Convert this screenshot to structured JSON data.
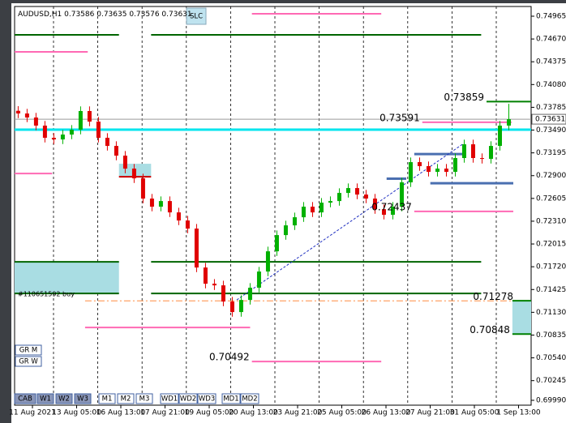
{
  "chart_data": {
    "type": "candlestick",
    "title": "AUDUSD,H1",
    "quote": [
      0.73586,
      0.73635,
      0.73576,
      0.73631
    ],
    "bid": 0.73631,
    "up_color": "#00b000",
    "down_color": "#e00000",
    "xlim": [
      -0.4,
      57.5
    ],
    "ylim": [
      0.69927,
      0.75091
    ],
    "yticks": [
      0.74965,
      {
        "value": 0.7467,
        "label": "0.74670"
      },
      0.74375,
      {
        "value": 0.7408,
        "label": "0.74080"
      },
      0.73785,
      {
        "value": 0.7349,
        "label": "0.73490"
      },
      0.73195,
      {
        "value": 0.729,
        "label": "0.72900"
      },
      0.72605,
      {
        "value": 0.7231,
        "label": "0.72310"
      },
      0.72015,
      {
        "value": 0.7172,
        "label": "0.71720"
      },
      0.71425,
      {
        "value": 0.7113,
        "label": "0.71130"
      },
      0.70835,
      {
        "value": 0.7054,
        "label": "0.70540"
      },
      0.70245,
      {
        "value": 0.6999,
        "label": "0.69990"
      }
    ],
    "x_labels": [
      "11 Aug 2021",
      "13 Aug 05:00",
      "16 Aug 13:00",
      "17 Aug 21:00",
      "19 Aug 05:00",
      "20 Aug 13:00",
      "23 Aug 21:00",
      "25 Aug 05:00",
      "26 Aug 13:00",
      "27 Aug 21:00",
      "31 Aug 05:00",
      "1 Sep 13:00"
    ],
    "open": [
      0.7374,
      0.73705,
      0.73653,
      0.73548,
      0.7339,
      0.73369,
      0.73432,
      0.73495,
      0.73737,
      0.736,
      0.7339,
      0.73285,
      0.73159,
      0.72991,
      0.72865,
      0.72603,
      0.72498,
      0.72571,
      0.72424,
      0.72319,
      0.72214,
      0.7171,
      0.715,
      0.71479,
      0.71269,
      0.71133,
      0.7129,
      0.71448,
      0.71658,
      0.7192,
      0.7213,
      0.72256,
      0.72361,
      0.72498,
      0.72424,
      0.7255,
      0.72571,
      0.72676,
      0.72739,
      0.72655,
      0.72603,
      0.72466,
      0.72393,
      0.72498,
      0.72813,
      0.73075,
      0.73023,
      0.72949,
      0.72991,
      0.72949,
      0.73128,
      0.73306,
      0.73128,
      0.73117,
      0.73285,
      0.73548
    ],
    "high": [
      0.738,
      0.73765,
      0.73713,
      0.73608,
      0.7345,
      0.73492,
      0.73555,
      0.73797,
      0.73797,
      0.7366,
      0.7345,
      0.73345,
      0.73219,
      0.73051,
      0.72925,
      0.72663,
      0.72631,
      0.72631,
      0.72484,
      0.72379,
      0.72274,
      0.7177,
      0.7156,
      0.71539,
      0.71329,
      0.7135,
      0.71508,
      0.71718,
      0.7198,
      0.7219,
      0.72316,
      0.72421,
      0.72558,
      0.72558,
      0.7261,
      0.72631,
      0.72736,
      0.72799,
      0.72799,
      0.72715,
      0.72663,
      0.72526,
      0.72558,
      0.72873,
      0.73135,
      0.73135,
      0.73083,
      0.73051,
      0.73051,
      0.73188,
      0.73366,
      0.73366,
      0.73188,
      0.73345,
      0.73608,
      0.7383
    ],
    "low": [
      0.73645,
      0.73593,
      0.73488,
      0.7333,
      0.73309,
      0.73309,
      0.73372,
      0.73435,
      0.7354,
      0.7333,
      0.73225,
      0.73099,
      0.72931,
      0.72805,
      0.72543,
      0.72438,
      0.72438,
      0.72364,
      0.72259,
      0.72154,
      0.7165,
      0.7144,
      0.71419,
      0.71209,
      0.71073,
      0.71073,
      0.7123,
      0.71388,
      0.71598,
      0.7186,
      0.7207,
      0.72196,
      0.72301,
      0.72364,
      0.72364,
      0.7249,
      0.72511,
      0.72616,
      0.72595,
      0.72543,
      0.72406,
      0.72333,
      0.72333,
      0.72438,
      0.72753,
      0.72963,
      0.72889,
      0.72889,
      0.72889,
      0.72889,
      0.73068,
      0.73068,
      0.73057,
      0.73057,
      0.73225,
      0.73488
    ],
    "close": [
      0.73705,
      0.73653,
      0.73548,
      0.7339,
      0.73369,
      0.73432,
      0.73495,
      0.73737,
      0.736,
      0.7339,
      0.73285,
      0.73159,
      0.72991,
      0.72865,
      0.72603,
      0.72498,
      0.72571,
      0.72424,
      0.72319,
      0.72214,
      0.7171,
      0.715,
      0.71479,
      0.71269,
      0.71133,
      0.7129,
      0.71448,
      0.71658,
      0.7192,
      0.7213,
      0.72256,
      0.72361,
      0.72498,
      0.72424,
      0.7255,
      0.72571,
      0.72676,
      0.72739,
      0.72655,
      0.72603,
      0.72466,
      0.72393,
      0.72498,
      0.72813,
      0.73075,
      0.73023,
      0.72949,
      0.72991,
      0.72949,
      0.73128,
      0.73306,
      0.73128,
      0.73117,
      0.73285,
      0.73548,
      0.73631
    ],
    "zones": [
      {
        "top": 0.71783,
        "bottom": 0.71374,
        "from": -0.4,
        "to": 11.3,
        "color": "#a9dde3"
      },
      {
        "top": 0.73054,
        "bottom": 0.72886,
        "from": 11.3,
        "to": 14.9,
        "color": "#a9dde3"
      },
      {
        "top": 0.7128,
        "bottom": 0.70848,
        "from": 55.4,
        "to": 57.5,
        "color": "#a9dde3"
      }
    ],
    "levels": [
      {
        "value": 0.74723,
        "color": "#006400",
        "from": -0.4,
        "to": 11.3
      },
      {
        "value": 0.74723,
        "color": "#006400",
        "from": 14.9,
        "to": 51.9
      },
      {
        "value": 0.74996,
        "color": "#ff69b4",
        "from": 26.2,
        "to": 40.7
      },
      {
        "value": 0.74503,
        "color": "#ff69b4",
        "from": -0.4,
        "to": 7.8
      },
      {
        "value": 0.73495,
        "color": "#00e5ee",
        "from": -0.4,
        "to": 57.5,
        "width": 3
      },
      {
        "value": 0.73591,
        "color": "#ff69b4",
        "from": 45.3,
        "to": 55.3,
        "labeled": true,
        "label_color": "#f2a6c8"
      },
      {
        "value": 0.73859,
        "color": "#008000",
        "from": 52.5,
        "to": 57.5,
        "labeled": true
      },
      {
        "value": 0.72928,
        "color": "#ff69b4",
        "from": -0.4,
        "to": 3.8
      },
      {
        "value": 0.72886,
        "color": "#cc0000",
        "from": 11.3,
        "to": 14.9
      },
      {
        "value": 0.71783,
        "color": "#006400",
        "from": -0.4,
        "to": 11.3
      },
      {
        "value": 0.71783,
        "color": "#006400",
        "from": 14.9,
        "to": 51.9
      },
      {
        "value": 0.71374,
        "color": "#006400",
        "from": -0.4,
        "to": 11.3
      },
      {
        "value": 0.71374,
        "color": "#006400",
        "from": 14.9,
        "to": 51.9
      },
      {
        "value": 0.71278,
        "color": "#ff8c40",
        "from": 7.5,
        "to": 57.5,
        "width": 1,
        "dash": true,
        "labeled": true,
        "label_color": "#008000"
      },
      {
        "value": 0.70933,
        "color": "#ff69b4",
        "from": 7.5,
        "to": 26
      },
      {
        "value": 0.72437,
        "color": "#ff69b4",
        "from": 44.4,
        "to": 55.5,
        "labeled": true
      },
      {
        "value": 0.70492,
        "color": "#ff69b4",
        "from": 26.2,
        "to": 40.7,
        "labeled": true
      },
      {
        "value": 0.70848,
        "color": "#008000",
        "from": 55.4,
        "to": 57.5,
        "labeled": true
      },
      {
        "value": 0.7128,
        "color": "#008000",
        "from": 55.4,
        "to": 57.5
      },
      {
        "value": 0.7286,
        "color": "#4a6fb0",
        "from": 41.3,
        "to": 43.5,
        "width": 3
      },
      {
        "value": 0.7318,
        "color": "#4a6fb0",
        "from": 44.4,
        "to": 49.8,
        "width": 3
      },
      {
        "value": 0.72802,
        "color": "#4a6fb0",
        "from": 46.2,
        "to": 55.5,
        "width": 3
      }
    ],
    "trend_line": {
      "from": 24.5,
      "to": 49.8,
      "start": 0.7129,
      "end": 0.73306,
      "color": "#2030c0"
    },
    "order_label": "#110651592 buy",
    "slc_button": "SLC",
    "side_buttons": [
      "GR M",
      "GR W"
    ],
    "buttons": [
      "CAB",
      "W1",
      "W2",
      "W3",
      "M1",
      "M2",
      "M3",
      "WD1",
      "WD2",
      "WD3",
      "MD1",
      "MD2"
    ]
  }
}
